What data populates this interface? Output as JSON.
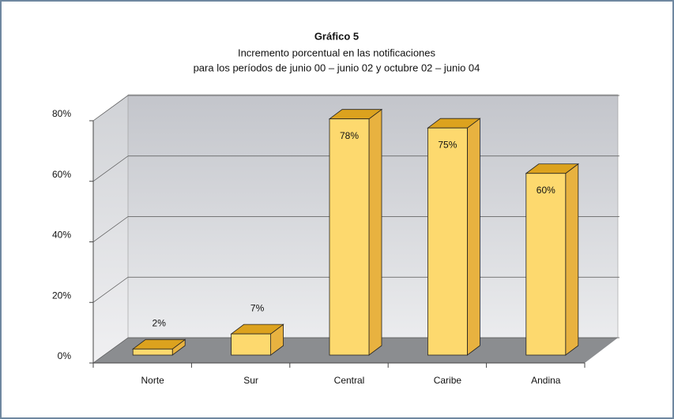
{
  "chart_data": {
    "type": "bar3d",
    "title": "Gráfico 5",
    "subtitle": [
      "Incremento porcentual en las notificaciones",
      "para los períodos de junio 00 – junio 02 y octubre 02 – junio 04"
    ],
    "categories": [
      "Norte",
      "Sur",
      "Central",
      "Caribe",
      "Andina"
    ],
    "values": [
      2,
      7,
      78,
      75,
      60
    ],
    "value_labels": [
      "2%",
      "7%",
      "78%",
      "75%",
      "60%"
    ],
    "color": "#fdd96e",
    "ylim": [
      0,
      80
    ],
    "yticks": [
      {
        "value": 0,
        "label": "0%"
      },
      {
        "value": 20,
        "label": "20%"
      },
      {
        "value": 40,
        "label": "40%"
      },
      {
        "value": 60,
        "label": "60%"
      },
      {
        "value": 80,
        "label": "80%"
      }
    ],
    "grid": true
  }
}
